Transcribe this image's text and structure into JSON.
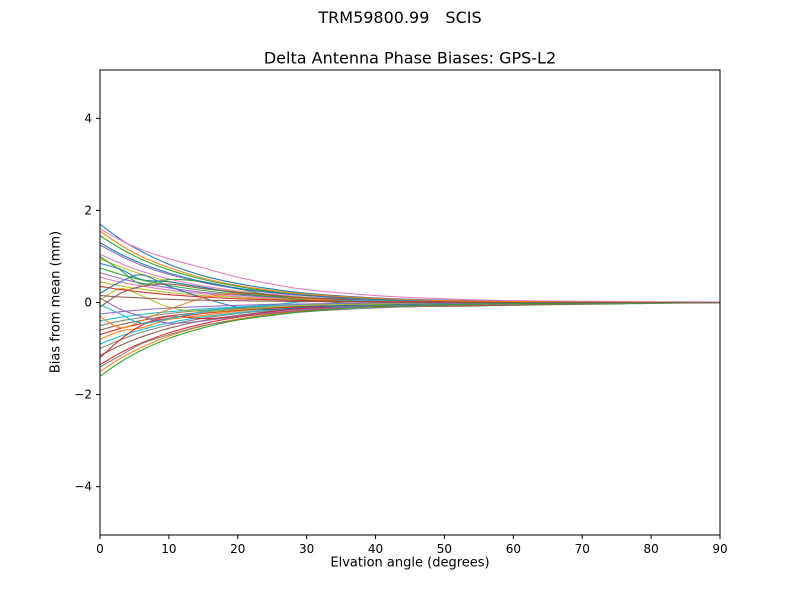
{
  "suptitle": {
    "left": "TRM59800.99",
    "right": "SCIS"
  },
  "chart_data": {
    "type": "line",
    "title": "Delta Antenna Phase Biases: GPS-L2",
    "xlabel": "Elvation angle (degrees)",
    "ylabel": "Bias from mean (mm)",
    "xlim": [
      0,
      90
    ],
    "ylim": [
      -5.05,
      5.05
    ],
    "xticks": [
      0,
      10,
      20,
      30,
      40,
      50,
      60,
      70,
      80,
      90
    ],
    "yticks": [
      -4,
      -2,
      0,
      2,
      4
    ],
    "ytick_labels": [
      "−4",
      "−2",
      "0",
      "2",
      "4"
    ],
    "grid": false,
    "legend": "none",
    "background": "#ffffff",
    "axis_color": "#000000",
    "x": [
      0,
      3,
      6,
      10,
      15,
      20,
      25,
      30,
      40,
      50,
      60,
      75,
      90
    ],
    "series": [
      {
        "color": "#1f77b4",
        "values": [
          1.7,
          1.37,
          1.11,
          0.83,
          0.58,
          0.41,
          0.29,
          0.2,
          0.1,
          0.05,
          0.03,
          0.01,
          0.01
        ]
      },
      {
        "color": "#ff7f0e",
        "values": [
          -1.5,
          -1.21,
          -0.98,
          -0.73,
          -0.51,
          -0.36,
          -0.25,
          -0.18,
          -0.09,
          -0.05,
          -0.02,
          -0.01,
          -0.01
        ]
      },
      {
        "color": "#2ca02c",
        "values": [
          1.45,
          1.17,
          0.94,
          0.71,
          0.5,
          0.35,
          0.24,
          0.17,
          0.08,
          0.04,
          0.02,
          0.01,
          0.0
        ]
      },
      {
        "color": "#d62728",
        "values": [
          -1.35,
          -1.09,
          -0.88,
          -0.66,
          -0.46,
          -0.32,
          -0.23,
          -0.16,
          -0.08,
          -0.04,
          -0.02,
          -0.01,
          0.0
        ]
      },
      {
        "color": "#9467bd",
        "values": [
          1.25,
          1.01,
          0.81,
          0.61,
          0.43,
          0.3,
          0.21,
          0.15,
          0.07,
          0.04,
          0.02,
          0.01,
          0.0
        ]
      },
      {
        "color": "#8c564b",
        "values": [
          -1.15,
          -0.93,
          -0.75,
          -0.56,
          -0.39,
          -0.28,
          -0.19,
          -0.13,
          -0.07,
          -0.03,
          -0.02,
          -0.01,
          0.0
        ]
      },
      {
        "color": "#e377c2",
        "values": [
          1.05,
          0.85,
          0.68,
          0.51,
          0.36,
          0.25,
          0.18,
          0.12,
          0.06,
          0.03,
          0.01,
          0.01,
          0.0
        ]
      },
      {
        "color": "#7f7f7f",
        "values": [
          -1.0,
          -0.81,
          -0.65,
          -0.49,
          -0.34,
          -0.24,
          -0.17,
          -0.12,
          -0.06,
          -0.03,
          -0.01,
          -0.01,
          0.0
        ]
      },
      {
        "color": "#bcbd22",
        "values": [
          0.95,
          0.77,
          0.62,
          0.46,
          0.32,
          0.23,
          0.16,
          0.11,
          0.05,
          0.03,
          0.01,
          0.0,
          0.0
        ]
      },
      {
        "color": "#17becf",
        "values": [
          -0.9,
          -0.73,
          -0.59,
          -0.44,
          -0.31,
          -0.22,
          -0.15,
          -0.11,
          -0.05,
          -0.03,
          -0.01,
          0.0,
          0.0
        ]
      },
      {
        "color": "#1f77b4",
        "values": [
          0.85,
          0.72,
          0.5,
          0.45,
          0.33,
          0.2,
          0.13,
          0.1,
          0.05,
          0.02,
          0.01,
          0.0,
          0.0
        ]
      },
      {
        "color": "#ff7f0e",
        "values": [
          -0.8,
          -0.62,
          -0.55,
          -0.37,
          -0.28,
          -0.19,
          -0.13,
          -0.09,
          -0.05,
          -0.02,
          -0.01,
          0.0,
          0.0
        ]
      },
      {
        "color": "#2ca02c",
        "values": [
          0.75,
          0.61,
          0.49,
          0.37,
          0.26,
          0.18,
          0.13,
          0.09,
          0.04,
          0.02,
          0.01,
          0.0,
          0.0
        ]
      },
      {
        "color": "#d62728",
        "values": [
          -0.7,
          -0.56,
          -0.46,
          -0.34,
          -0.24,
          -0.17,
          -0.12,
          -0.08,
          -0.04,
          -0.02,
          -0.01,
          0.0,
          0.0
        ]
      },
      {
        "color": "#9467bd",
        "values": [
          0.65,
          0.52,
          0.42,
          0.32,
          0.22,
          0.16,
          0.11,
          0.08,
          0.04,
          0.02,
          0.01,
          0.0,
          0.0
        ]
      },
      {
        "color": "#8c564b",
        "values": [
          -0.6,
          -0.48,
          -0.39,
          -0.29,
          -0.21,
          -0.14,
          -0.1,
          -0.07,
          -0.03,
          -0.02,
          -0.01,
          0.0,
          0.0
        ]
      },
      {
        "color": "#e377c2",
        "values": [
          0.55,
          0.44,
          0.36,
          0.27,
          0.19,
          0.13,
          0.09,
          0.06,
          0.03,
          0.02,
          0.01,
          0.0,
          0.0
        ]
      },
      {
        "color": "#7f7f7f",
        "values": [
          -0.5,
          -0.4,
          -0.33,
          -0.24,
          -0.17,
          -0.12,
          -0.08,
          -0.06,
          -0.03,
          -0.01,
          -0.01,
          0.0,
          0.0
        ]
      },
      {
        "color": "#bcbd22",
        "values": [
          0.45,
          0.36,
          0.29,
          0.22,
          0.15,
          0.11,
          0.08,
          0.05,
          0.03,
          0.01,
          0.01,
          0.0,
          0.0
        ]
      },
      {
        "color": "#17becf",
        "values": [
          -0.4,
          -0.32,
          -0.26,
          -0.2,
          -0.14,
          -0.1,
          -0.07,
          -0.05,
          -0.02,
          -0.01,
          0.0,
          0.0,
          0.0
        ]
      },
      {
        "color": "#1f77b4",
        "values": [
          0.2,
          0.45,
          0.6,
          0.35,
          0.1,
          -0.1,
          -0.15,
          -0.1,
          -0.05,
          -0.02,
          0.0,
          0.0,
          0.0
        ]
      },
      {
        "color": "#ff7f0e",
        "values": [
          -0.3,
          -0.55,
          -0.4,
          -0.15,
          0.1,
          0.2,
          0.15,
          0.08,
          0.03,
          0.01,
          0.0,
          0.0,
          0.0
        ]
      },
      {
        "color": "#2ca02c",
        "values": [
          1.0,
          0.7,
          0.4,
          0.5,
          0.45,
          0.3,
          0.15,
          0.05,
          -0.05,
          -0.08,
          -0.06,
          -0.03,
          0.0
        ]
      },
      {
        "color": "#d62728",
        "values": [
          -1.2,
          -0.8,
          -0.5,
          -0.3,
          -0.35,
          -0.3,
          -0.2,
          -0.12,
          -0.1,
          -0.08,
          -0.05,
          -0.02,
          0.0
        ]
      },
      {
        "color": "#9467bd",
        "values": [
          0.1,
          -0.15,
          -0.3,
          -0.45,
          -0.4,
          -0.3,
          -0.22,
          -0.15,
          -0.08,
          -0.04,
          -0.02,
          -0.01,
          0.0
        ]
      },
      {
        "color": "#8c564b",
        "values": [
          -0.1,
          0.2,
          0.35,
          0.4,
          0.3,
          0.22,
          0.16,
          0.1,
          0.05,
          0.03,
          0.02,
          0.01,
          0.0
        ]
      },
      {
        "color": "#e377c2",
        "values": [
          1.6,
          1.35,
          1.15,
          0.95,
          0.75,
          0.55,
          0.4,
          0.28,
          0.15,
          0.08,
          0.04,
          0.02,
          0.01
        ]
      },
      {
        "color": "#7f7f7f",
        "values": [
          -1.4,
          -1.15,
          -0.9,
          -0.7,
          -0.5,
          -0.38,
          -0.28,
          -0.2,
          -0.12,
          -0.07,
          -0.04,
          -0.02,
          -0.01
        ]
      },
      {
        "color": "#bcbd22",
        "values": [
          0.05,
          0.3,
          0.15,
          -0.1,
          -0.2,
          -0.15,
          -0.1,
          -0.06,
          -0.03,
          -0.01,
          0.0,
          0.0,
          0.0
        ]
      },
      {
        "color": "#17becf",
        "values": [
          -0.05,
          -0.25,
          -0.45,
          -0.35,
          -0.2,
          -0.1,
          -0.05,
          0.02,
          0.05,
          0.04,
          0.02,
          0.01,
          0.0
        ]
      },
      {
        "color": "#1f77b4",
        "values": [
          1.3,
          1.05,
          0.85,
          0.64,
          0.45,
          0.31,
          0.22,
          0.15,
          0.07,
          0.04,
          0.02,
          0.01,
          0.0
        ]
      },
      {
        "color": "#ff7f0e",
        "values": [
          1.55,
          1.25,
          1.0,
          0.76,
          0.53,
          0.37,
          0.26,
          0.18,
          0.09,
          0.04,
          0.02,
          0.01,
          0.0
        ]
      },
      {
        "color": "#2ca02c",
        "values": [
          -1.6,
          -1.29,
          -1.04,
          -0.78,
          -0.55,
          -0.38,
          -0.27,
          -0.19,
          -0.09,
          -0.05,
          -0.02,
          -0.01,
          0.0
        ]
      },
      {
        "color": "#d62728",
        "values": [
          0.35,
          0.28,
          0.23,
          0.17,
          0.12,
          0.08,
          0.06,
          0.04,
          0.02,
          0.01,
          0.0,
          0.0,
          0.0
        ]
      },
      {
        "color": "#9467bd",
        "values": [
          -0.25,
          -0.2,
          -0.16,
          -0.12,
          -0.09,
          -0.06,
          -0.04,
          -0.03,
          -0.01,
          -0.01,
          0.0,
          0.0,
          0.0
        ]
      },
      {
        "color": "#8c564b",
        "values": [
          0.15,
          0.12,
          0.1,
          0.07,
          0.05,
          0.04,
          0.03,
          0.02,
          0.01,
          0.0,
          0.0,
          0.0,
          0.0
        ]
      }
    ]
  }
}
